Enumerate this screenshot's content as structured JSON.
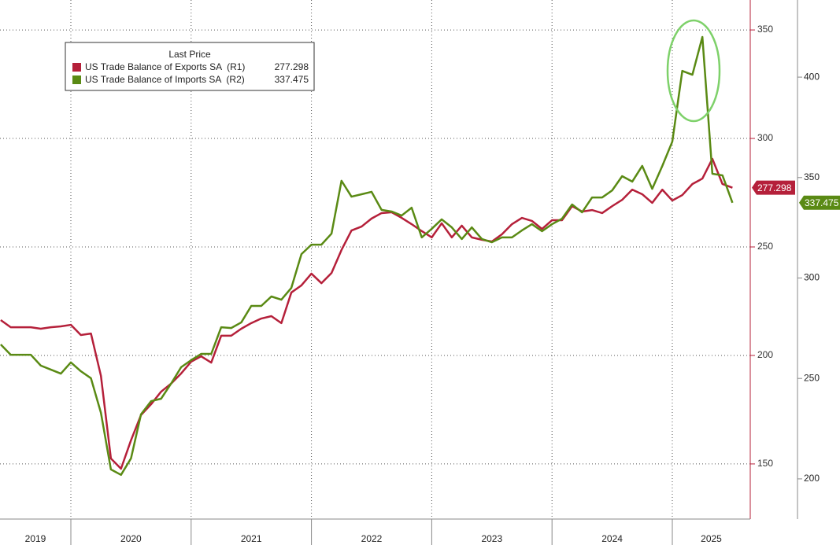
{
  "chart_data": {
    "type": "line",
    "legend_title": "Last Price",
    "x": [
      2019.417,
      2019.5,
      2019.583,
      2019.667,
      2019.75,
      2019.833,
      2019.917,
      2020.0,
      2020.083,
      2020.167,
      2020.25,
      2020.333,
      2020.417,
      2020.5,
      2020.583,
      2020.667,
      2020.75,
      2020.833,
      2020.917,
      2021.0,
      2021.083,
      2021.167,
      2021.25,
      2021.333,
      2021.417,
      2021.5,
      2021.583,
      2021.667,
      2021.75,
      2021.833,
      2021.917,
      2022.0,
      2022.083,
      2022.167,
      2022.25,
      2022.333,
      2022.417,
      2022.5,
      2022.583,
      2022.667,
      2022.75,
      2022.833,
      2022.917,
      2023.0,
      2023.083,
      2023.167,
      2023.25,
      2023.333,
      2023.417,
      2023.5,
      2023.583,
      2023.667,
      2023.75,
      2023.833,
      2023.917,
      2024.0,
      2024.083,
      2024.167,
      2024.25,
      2024.333,
      2024.417,
      2024.5,
      2024.583,
      2024.667,
      2024.75,
      2024.833,
      2024.917,
      2025.0,
      2025.083,
      2025.167,
      2025.25,
      2025.333,
      2025.417,
      2025.5
    ],
    "xlim": [
      2019.411,
      2025.648
    ],
    "xticks": [
      2020,
      2021,
      2022,
      2023,
      2024,
      2025
    ],
    "year_labels": [
      2019,
      2020,
      2021,
      2022,
      2023,
      2024,
      2025
    ],
    "ylim": [
      124.6,
      363.8
    ],
    "yticks": [
      150,
      200,
      250,
      300,
      350
    ],
    "y2lim": [
      180.0,
      438.4
    ],
    "y2ticks": [
      200,
      250,
      300,
      350,
      400
    ],
    "grid": true,
    "legend": "upper left",
    "series": [
      {
        "name": "US Trade Balance of Exports SA  (R1)",
        "color": "#b5203a",
        "axis": "y",
        "values": [
          216.3,
          213.0,
          213.0,
          213.0,
          212.3,
          213.0,
          213.4,
          214.1,
          209.4,
          210.1,
          190.6,
          152.5,
          147.8,
          160.9,
          172.5,
          177.5,
          183.3,
          187.0,
          191.7,
          197.1,
          199.6,
          196.7,
          209.1,
          209.1,
          212.3,
          214.9,
          217.0,
          218.1,
          214.9,
          229.0,
          232.3,
          237.7,
          233.3,
          238.0,
          248.6,
          257.6,
          259.4,
          263.1,
          265.6,
          266.0,
          263.4,
          260.5,
          257.3,
          254.4,
          260.9,
          254.4,
          259.8,
          254.4,
          253.3,
          252.5,
          255.8,
          260.5,
          263.4,
          262.0,
          258.3,
          262.3,
          262.3,
          268.8,
          266.3,
          267.0,
          265.6,
          268.8,
          271.7,
          276.4,
          274.3,
          270.3,
          276.4,
          271.4,
          273.9,
          279.0,
          281.5,
          290.6,
          279.0,
          277.298
        ]
      },
      {
        "name": "US Trade Balance of Imports SA  (R2)",
        "color": "#5a8a14",
        "axis": "y2",
        "values": [
          266.9,
          261.8,
          261.8,
          261.8,
          256.4,
          254.4,
          252.4,
          258.0,
          253.6,
          250.1,
          232.9,
          204.7,
          202.0,
          210.2,
          232.1,
          238.7,
          239.9,
          247.4,
          255.6,
          259.1,
          262.2,
          262.2,
          275.5,
          275.1,
          277.9,
          286.1,
          286.1,
          290.8,
          289.2,
          295.1,
          311.9,
          316.6,
          316.6,
          322.1,
          348.4,
          340.5,
          341.7,
          342.9,
          333.9,
          333.1,
          331.1,
          335.0,
          320.2,
          324.5,
          329.2,
          325.2,
          319.4,
          325.2,
          319.4,
          317.8,
          320.2,
          320.2,
          323.7,
          326.8,
          323.3,
          326.8,
          329.5,
          336.6,
          332.7,
          340.1,
          340.1,
          343.6,
          350.7,
          348.0,
          355.8,
          344.4,
          355.8,
          367.9,
          403.1,
          401.2,
          420.0,
          351.9,
          351.1,
          337.475
        ]
      }
    ]
  }
}
